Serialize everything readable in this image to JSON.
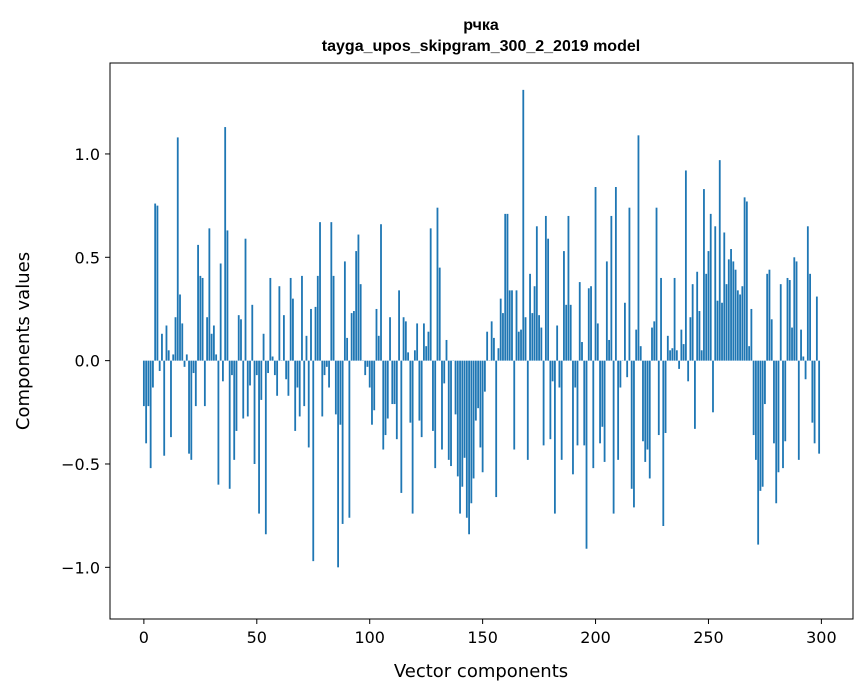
{
  "chart_data": {
    "type": "bar",
    "title": "рчка",
    "subtitle": "tayga_upos_skipgram_300_2_2019 model",
    "xlabel": "Vector components",
    "ylabel": "Components values",
    "xlim": [
      -15,
      314
    ],
    "ylim": [
      -1.25,
      1.44
    ],
    "xticks": [
      0,
      50,
      100,
      150,
      200,
      250,
      300
    ],
    "yticks": [
      -1.0,
      -0.5,
      0.0,
      0.5,
      1.0
    ],
    "xtick_labels": [
      "0",
      "50",
      "100",
      "150",
      "200",
      "250",
      "300"
    ],
    "ytick_labels": [
      "−1.0",
      "−0.5",
      "0.0",
      "0.5",
      "1.0"
    ],
    "grid": false,
    "bar_color": "#1f77b4",
    "values": [
      -0.22,
      -0.4,
      -0.22,
      -0.52,
      -0.13,
      0.76,
      0.75,
      -0.05,
      0.13,
      -0.46,
      0.17,
      0.05,
      -0.37,
      0.03,
      0.21,
      1.08,
      0.32,
      0.18,
      -0.03,
      0.03,
      -0.45,
      -0.48,
      -0.06,
      -0.22,
      0.56,
      0.41,
      0.4,
      -0.22,
      0.21,
      0.64,
      0.13,
      0.17,
      0.03,
      -0.6,
      0.47,
      -0.1,
      1.13,
      0.63,
      -0.62,
      -0.07,
      -0.48,
      -0.34,
      0.22,
      0.2,
      -0.28,
      0.59,
      -0.27,
      -0.12,
      0.27,
      -0.5,
      -0.07,
      -0.74,
      -0.19,
      0.13,
      -0.84,
      -0.06,
      0.4,
      0.02,
      -0.07,
      -0.17,
      0.36,
      0.0,
      0.22,
      -0.09,
      -0.17,
      0.4,
      0.3,
      -0.34,
      -0.13,
      -0.27,
      0.41,
      -0.22,
      0.12,
      -0.42,
      0.25,
      -0.97,
      0.26,
      0.41,
      0.67,
      -0.27,
      -0.07,
      -0.03,
      -0.13,
      0.67,
      0.41,
      -0.26,
      -1.0,
      -0.31,
      -0.79,
      0.48,
      0.11,
      -0.76,
      0.23,
      0.24,
      0.53,
      0.61,
      0.37,
      0.0,
      -0.07,
      -0.03,
      -0.13,
      -0.31,
      -0.24,
      0.25,
      0.12,
      0.66,
      -0.43,
      -0.36,
      -0.28,
      0.21,
      -0.21,
      -0.21,
      -0.38,
      0.34,
      -0.64,
      0.21,
      0.19,
      0.04,
      -0.3,
      -0.74,
      0.05,
      0.18,
      -0.29,
      -0.37,
      0.18,
      0.07,
      0.14,
      0.64,
      -0.34,
      -0.52,
      0.74,
      0.45,
      -0.43,
      -0.11,
      0.1,
      -0.48,
      -0.51,
      0.0,
      -0.26,
      -0.56,
      -0.74,
      -0.61,
      -0.47,
      -0.76,
      -0.84,
      -0.69,
      -0.57,
      -0.29,
      -0.23,
      -0.42,
      -0.54,
      -0.15,
      0.14,
      0.0,
      0.19,
      0.11,
      -0.66,
      0.06,
      0.3,
      0.23,
      0.71,
      0.71,
      0.34,
      0.34,
      -0.43,
      0.34,
      0.14,
      0.15,
      1.31,
      0.21,
      -0.48,
      0.42,
      0.23,
      0.36,
      0.65,
      0.22,
      0.16,
      -0.41,
      0.7,
      0.59,
      -0.38,
      -0.1,
      -0.74,
      0.17,
      -0.13,
      -0.48,
      0.53,
      0.27,
      0.7,
      0.27,
      -0.55,
      -0.13,
      -0.41,
      0.38,
      0.09,
      -0.41,
      -0.91,
      0.35,
      0.36,
      -0.52,
      0.84,
      0.18,
      -0.4,
      -0.32,
      -0.49,
      0.48,
      0.1,
      0.7,
      -0.74,
      0.84,
      -0.48,
      -0.13,
      0.0,
      0.28,
      -0.08,
      0.74,
      -0.62,
      -0.71,
      0.15,
      1.09,
      0.07,
      -0.39,
      -0.49,
      -0.43,
      -0.57,
      0.16,
      0.19,
      0.74,
      -0.36,
      0.4,
      -0.8,
      -0.35,
      0.12,
      0.05,
      0.06,
      0.4,
      0.05,
      -0.04,
      0.15,
      0.08,
      0.92,
      -0.1,
      0.21,
      0.37,
      -0.33,
      0.43,
      0.24,
      0.05,
      0.83,
      0.42,
      0.53,
      0.71,
      -0.25,
      0.65,
      0.29,
      0.97,
      0.28,
      0.62,
      0.37,
      0.49,
      0.54,
      0.48,
      0.44,
      0.34,
      0.32,
      0.36,
      0.79,
      0.77,
      0.07,
      0.25,
      -0.36,
      -0.48,
      -0.89,
      -0.63,
      -0.61,
      -0.21,
      0.42,
      0.44,
      0.2,
      -0.4,
      -0.69,
      -0.54,
      0.37,
      -0.52,
      -0.39,
      0.4,
      0.39,
      0.16,
      0.5,
      0.48,
      -0.48,
      0.15,
      0.02,
      -0.09,
      0.65,
      0.42,
      -0.3,
      -0.4,
      0.31,
      -0.45
    ]
  }
}
